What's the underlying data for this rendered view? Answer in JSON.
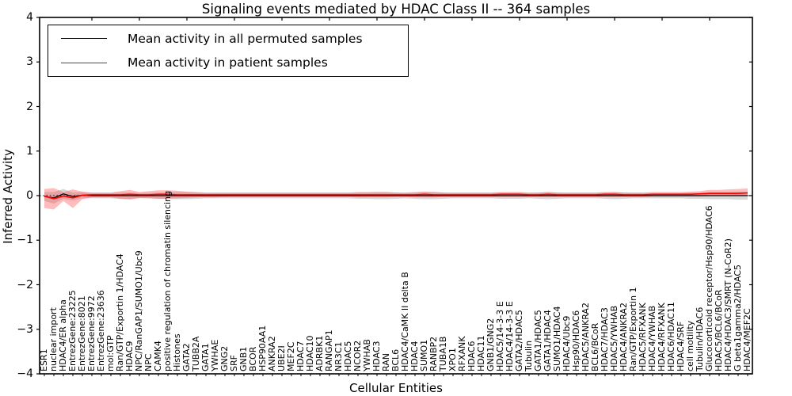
{
  "figure": {
    "title": "Signaling events mediated by HDAC Class II -- 364 samples",
    "xlabel": "Cellular Entities",
    "ylabel": "Inferred Activity"
  },
  "legend": {
    "items": [
      {
        "label": "Mean activity in all permuted samples",
        "color": "#000000"
      },
      {
        "label": "Mean activity in patient samples",
        "color": "#ff0000"
      }
    ]
  },
  "chart_data": {
    "type": "line",
    "title": "Signaling events mediated by HDAC Class II -- 364 samples",
    "xlabel": "Cellular Entities",
    "ylabel": "Inferred Activity",
    "ylim": [
      -4,
      4
    ],
    "yticks": [
      4,
      3,
      2,
      1,
      0,
      -1,
      -2,
      -3,
      -4
    ],
    "grid": false,
    "legend_position": "upper left",
    "zero_line_style": "dotted",
    "sample_count": "364",
    "categories": [
      "ESR1",
      "nuclear import",
      "HDAC4/ER alpha",
      "EntrezGene:23225",
      "EntrezGene:8021",
      "EntrezGene:9972",
      "EntrezGene:23636",
      "mol:GTP",
      "Ran/GTP/Exportin 1/HDAC4",
      "HDAC9",
      "NPC/RanGAP1/SUMO1/Ubc9",
      "NPC",
      "CAMK4",
      "positive regulation of chromatin silencing",
      "Histones",
      "GATA2",
      "TUBB2A",
      "GATA1",
      "YWHAE",
      "GNG2",
      "SRF",
      "GNB1",
      "BCOR",
      "HSP90AA1",
      "ANKRA2",
      "UBE2I",
      "MEF2C",
      "HDAC7",
      "HDAC10",
      "ADRBK1",
      "RANGAP1",
      "NR3C1",
      "HDAC5",
      "NCOR2",
      "YWHAB",
      "HDAC3",
      "RAN",
      "BCL6",
      "HDAC4/CaMK II delta B",
      "HDAC4",
      "SUMO1",
      "RANBP2",
      "TUBA1B",
      "XPO1",
      "RFXANK",
      "HDAC6",
      "HDAC11",
      "GNB1/GNG2",
      "HDAC5/14-3-3 E",
      "HDAC4/14-3-3 E",
      "GATA2/HDAC5",
      "Tubulin",
      "GATA1/HDAC5",
      "GATA1/HDAC4",
      "SUMO1/HDAC4",
      "HDAC4/Ubc9",
      "Hsp90/HDAC6",
      "HDAC5/ANKRA2",
      "BCL6/BCoR",
      "HDAC7/HDAC3",
      "HDAC5/YWHAB",
      "HDAC4/ANKRA2",
      "Ran/GTP/Exportin 1",
      "HDAC5/RFXANK",
      "HDAC4/YWHAB",
      "HDAC4/RFXANK",
      "HDAC6/HDAC11",
      "HDAC4/SRF",
      "cell motility",
      "Tubulin/HDAC6",
      "Glucocorticoid receptor/Hsp90/HDAC6",
      "HDAC5/BCL6/BCoR",
      "HDAC4/HDAC3/SMRT (N-CoR2)",
      "G beta1gamma2/HDAC5",
      "HDAC4/MEF2C"
    ],
    "series": [
      {
        "name": "Mean activity in all permuted samples",
        "color": "#000000",
        "band_color": "#888888",
        "values": [
          -0.02,
          -0.05,
          0.04,
          -0.02,
          0.01,
          0,
          0,
          0,
          0,
          0,
          0,
          0,
          0,
          0,
          0,
          0,
          0,
          0,
          0,
          0,
          0,
          0,
          0,
          0,
          0,
          0,
          0,
          0,
          0,
          0,
          0,
          0,
          0,
          0,
          0,
          0,
          0,
          0,
          0,
          0,
          0,
          0,
          0,
          0,
          0,
          0,
          0,
          0,
          0,
          0,
          0,
          0,
          0,
          0,
          0,
          0,
          0,
          0,
          0,
          0,
          0,
          0,
          0,
          0,
          0,
          0,
          0,
          0,
          0,
          0,
          0,
          0,
          0,
          0,
          0
        ],
        "band_upper": [
          0.08,
          0.08,
          0.15,
          0.07,
          0.08,
          0.06,
          0.06,
          0.06,
          0.07,
          0.07,
          0.06,
          0.06,
          0.07,
          0.07,
          0.08,
          0.08,
          0.07,
          0.06,
          0.06,
          0.06,
          0.06,
          0.06,
          0.06,
          0.06,
          0.06,
          0.06,
          0.06,
          0.06,
          0.06,
          0.06,
          0.06,
          0.06,
          0.06,
          0.07,
          0.07,
          0.08,
          0.08,
          0.07,
          0.06,
          0.07,
          0.08,
          0.08,
          0.07,
          0.06,
          0.06,
          0.06,
          0.06,
          0.06,
          0.07,
          0.07,
          0.07,
          0.06,
          0.07,
          0.08,
          0.07,
          0.06,
          0.06,
          0.06,
          0.06,
          0.07,
          0.08,
          0.07,
          0.06,
          0.06,
          0.06,
          0.06,
          0.06,
          0.06,
          0.07,
          0.07,
          0.08,
          0.08,
          0.08,
          0.09,
          0.09
        ],
        "band_lower": [
          -0.12,
          -0.18,
          -0.07,
          -0.11,
          -0.06,
          -0.06,
          -0.06,
          -0.06,
          -0.07,
          -0.07,
          -0.06,
          -0.06,
          -0.07,
          -0.07,
          -0.08,
          -0.08,
          -0.07,
          -0.06,
          -0.06,
          -0.06,
          -0.06,
          -0.06,
          -0.06,
          -0.06,
          -0.06,
          -0.06,
          -0.06,
          -0.06,
          -0.06,
          -0.06,
          -0.06,
          -0.06,
          -0.06,
          -0.07,
          -0.07,
          -0.08,
          -0.08,
          -0.07,
          -0.06,
          -0.07,
          -0.08,
          -0.08,
          -0.07,
          -0.06,
          -0.06,
          -0.06,
          -0.06,
          -0.06,
          -0.07,
          -0.07,
          -0.07,
          -0.06,
          -0.07,
          -0.08,
          -0.07,
          -0.06,
          -0.06,
          -0.06,
          -0.06,
          -0.07,
          -0.08,
          -0.07,
          -0.06,
          -0.06,
          -0.06,
          -0.06,
          -0.06,
          -0.06,
          -0.07,
          -0.07,
          -0.08,
          -0.08,
          -0.08,
          -0.09,
          -0.09
        ]
      },
      {
        "name": "Mean activity in patient samples",
        "color": "#ff0000",
        "band_color": "#ff3333",
        "values": [
          -0.01,
          -0.07,
          -0.01,
          -0.05,
          0.01,
          0.02,
          0.02,
          0.02,
          0.02,
          0.03,
          0.02,
          0.02,
          0.03,
          0.03,
          0.02,
          0.02,
          0.02,
          0.02,
          0.02,
          0.02,
          0.02,
          0.02,
          0.02,
          0.02,
          0.02,
          0.02,
          0.02,
          0.02,
          0.02,
          0.02,
          0.02,
          0.02,
          0.02,
          0.02,
          0.02,
          0.02,
          0.02,
          0.02,
          0.02,
          0.02,
          0.03,
          0.02,
          0.02,
          0.02,
          0.02,
          0.02,
          0.02,
          0.02,
          0.03,
          0.03,
          0.03,
          0.02,
          0.02,
          0.03,
          0.02,
          0.02,
          0.02,
          0.02,
          0.02,
          0.03,
          0.03,
          0.02,
          0.02,
          0.02,
          0.03,
          0.03,
          0.03,
          0.03,
          0.03,
          0.04,
          0.05,
          0.05,
          0.05,
          0.05,
          0.06
        ],
        "band_upper": [
          0.15,
          0.17,
          0.08,
          0.14,
          0.09,
          0.07,
          0.07,
          0.07,
          0.1,
          0.13,
          0.08,
          0.1,
          0.12,
          0.12,
          0.11,
          0.09,
          0.08,
          0.07,
          0.07,
          0.07,
          0.07,
          0.07,
          0.07,
          0.07,
          0.07,
          0.07,
          0.07,
          0.07,
          0.07,
          0.07,
          0.07,
          0.07,
          0.07,
          0.08,
          0.08,
          0.08,
          0.08,
          0.07,
          0.07,
          0.08,
          0.09,
          0.08,
          0.07,
          0.07,
          0.07,
          0.07,
          0.07,
          0.07,
          0.08,
          0.08,
          0.08,
          0.07,
          0.07,
          0.08,
          0.07,
          0.07,
          0.07,
          0.07,
          0.07,
          0.08,
          0.08,
          0.07,
          0.07,
          0.07,
          0.08,
          0.08,
          0.08,
          0.08,
          0.09,
          0.1,
          0.13,
          0.13,
          0.14,
          0.15,
          0.16
        ],
        "band_lower": [
          -0.28,
          -0.31,
          -0.12,
          -0.28,
          -0.08,
          -0.04,
          -0.04,
          -0.04,
          -0.07,
          -0.09,
          -0.05,
          -0.06,
          -0.07,
          -0.07,
          -0.06,
          -0.05,
          -0.04,
          -0.04,
          -0.04,
          -0.03,
          -0.03,
          -0.03,
          -0.03,
          -0.03,
          -0.03,
          -0.03,
          -0.03,
          -0.03,
          -0.03,
          -0.03,
          -0.03,
          -0.03,
          -0.03,
          -0.04,
          -0.04,
          -0.04,
          -0.04,
          -0.03,
          -0.03,
          -0.04,
          -0.04,
          -0.04,
          -0.03,
          -0.03,
          -0.03,
          -0.03,
          -0.03,
          -0.03,
          -0.03,
          -0.03,
          -0.03,
          -0.03,
          -0.03,
          -0.03,
          -0.03,
          -0.03,
          -0.03,
          -0.03,
          -0.03,
          -0.03,
          -0.03,
          -0.03,
          -0.03,
          -0.03,
          -0.02,
          -0.02,
          -0.02,
          -0.02,
          -0.02,
          -0.02,
          -0.01,
          -0.01,
          -0.01,
          -0.01,
          -0.01
        ]
      }
    ]
  }
}
